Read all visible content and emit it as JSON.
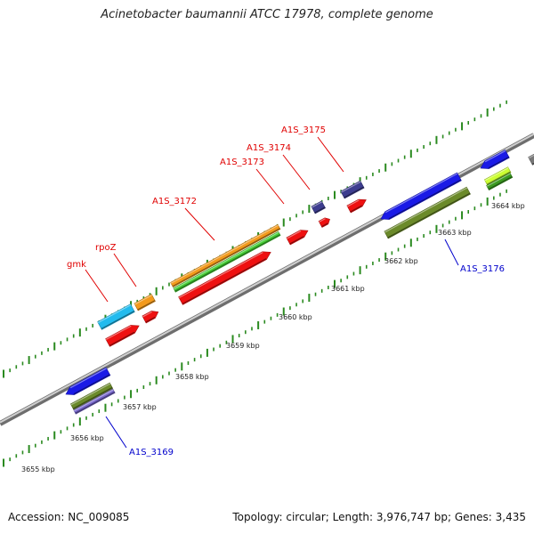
{
  "title": "Acinetobacter baumannii ATCC 17978, complete genome",
  "footer": {
    "accession": "Accession: NC_009085",
    "summary": "Topology: circular; Length: 3,976,747 bp; Genes: 3,435"
  },
  "colors": {
    "backbone": "#8c8c8c",
    "tick": "#2a8a1f",
    "label_forward": "#e00000",
    "label_reverse": "#0000cc"
  },
  "scale_labels": [
    "3655 kbp",
    "3656 kbp",
    "3657 kbp",
    "3658 kbp",
    "3659 kbp",
    "3660 kbp",
    "3661 kbp",
    "3662 kbp",
    "3663 kbp",
    "3664 kbp"
  ],
  "gene_labels": [
    {
      "text": "gmk",
      "strand": "forward"
    },
    {
      "text": "rpoZ",
      "strand": "forward"
    },
    {
      "text": "A1S_3172",
      "strand": "forward"
    },
    {
      "text": "A1S_3173",
      "strand": "forward"
    },
    {
      "text": "A1S_3174",
      "strand": "forward"
    },
    {
      "text": "A1S_3175",
      "strand": "forward"
    },
    {
      "text": "A1S_3176",
      "strand": "reverse"
    },
    {
      "text": "A1S_3169",
      "strand": "reverse"
    }
  ],
  "features": [
    {
      "id": "gmk-cds-cyan",
      "color": "#22bbee"
    },
    {
      "id": "gmk-gene-red",
      "color": "#ee1111"
    },
    {
      "id": "rpoz-cds-orange",
      "color": "#f39a1c"
    },
    {
      "id": "rpoz-gene-red",
      "color": "#ee1111"
    },
    {
      "id": "a1s3172-cds-orange",
      "color": "#f39a1c"
    },
    {
      "id": "a1s3172-cds-green",
      "color": "#44cc33"
    },
    {
      "id": "a1s3172-gene-red",
      "color": "#ee1111"
    },
    {
      "id": "a1s3173-gene-red",
      "color": "#ee1111"
    },
    {
      "id": "a1s3174-cds-navy",
      "color": "#3d3d8f"
    },
    {
      "id": "a1s3174-gene-red",
      "color": "#ee1111"
    },
    {
      "id": "a1s3175-cds-navy",
      "color": "#3d3d8f"
    },
    {
      "id": "a1s3175-gene-red",
      "color": "#ee1111"
    },
    {
      "id": "a1s3169-cds-blue",
      "color": "#1a1ae6"
    },
    {
      "id": "a1s3169-cds-olive",
      "color": "#6b8a2a"
    },
    {
      "id": "a1s3169-cds-lavender",
      "color": "#7766cc"
    },
    {
      "id": "a1s3176-cds-blue",
      "color": "#1a1ae6"
    },
    {
      "id": "a1s3176-cds-olive",
      "color": "#6b8a2a"
    },
    {
      "id": "edge-blue",
      "color": "#1a1ae6"
    },
    {
      "id": "edge-lime",
      "color": "#ccff33"
    },
    {
      "id": "edge-green",
      "color": "#3a9a1f"
    },
    {
      "id": "edge-gray",
      "color": "#777777"
    }
  ]
}
